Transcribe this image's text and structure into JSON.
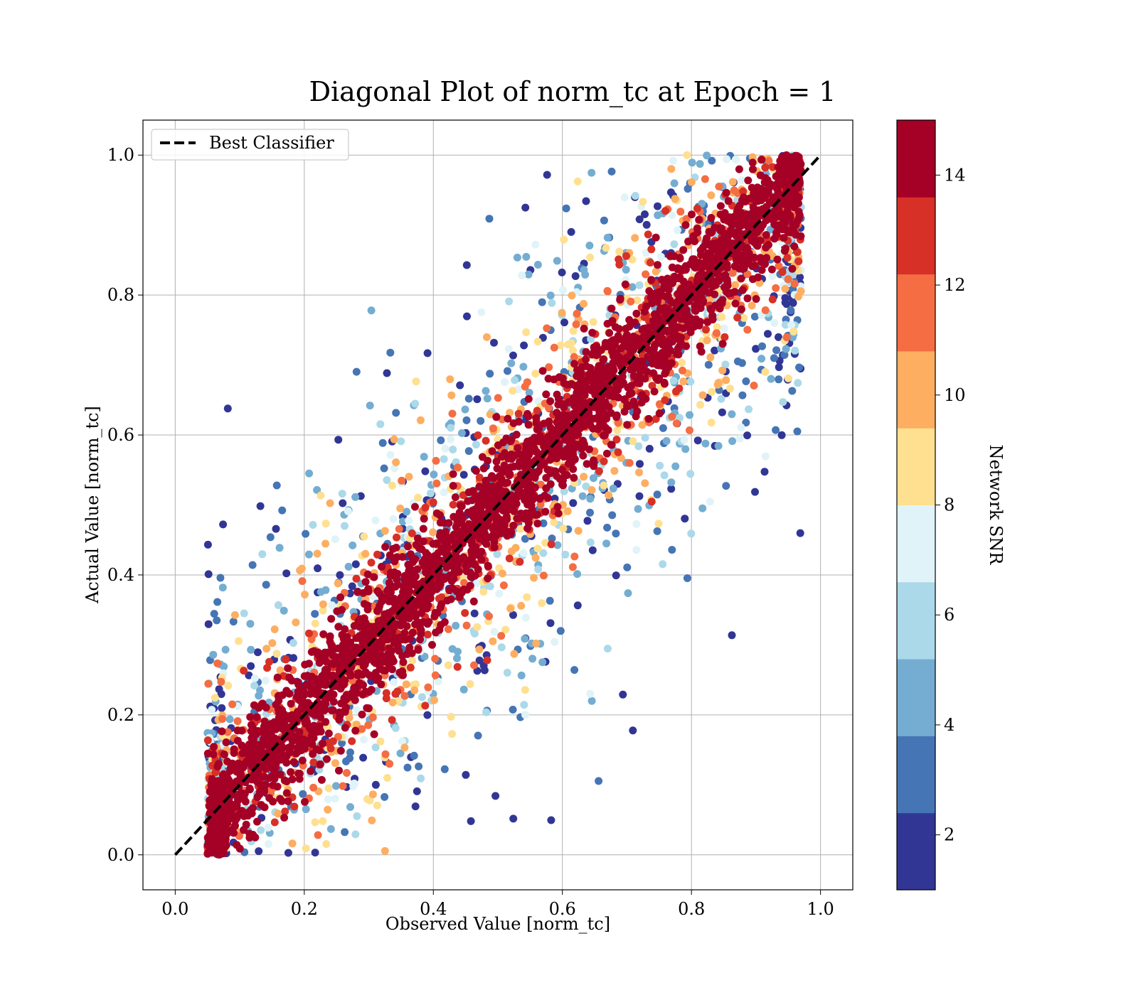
{
  "chart_data": {
    "type": "scatter",
    "title": "Diagonal Plot of norm_tc at Epoch = 1",
    "xlabel": "Observed Value [norm_tc]",
    "ylabel": "Actual Value [norm_tc]",
    "xlim": [
      -0.05,
      1.05
    ],
    "ylim": [
      -0.05,
      1.05
    ],
    "xticks": [
      "0.0",
      "0.2",
      "0.4",
      "0.6",
      "0.8",
      "1.0"
    ],
    "yticks": [
      "0.0",
      "0.2",
      "0.4",
      "0.6",
      "0.8",
      "1.0"
    ],
    "grid": true,
    "legend": {
      "placement": "upper-left",
      "entries": [
        "Best Classifier"
      ]
    },
    "reference_line": {
      "name": "Best Classifier",
      "style": "dashed",
      "color": "#000000",
      "x": [
        0,
        1
      ],
      "y": [
        0,
        1
      ]
    },
    "colorbar": {
      "label": "Network SNR",
      "range": [
        1,
        15
      ],
      "ticks": [
        "2",
        "4",
        "6",
        "8",
        "10",
        "12",
        "14"
      ],
      "colormap": "RdYlBu_r",
      "bins": 10,
      "colors": [
        "#313695",
        "#4575b4",
        "#74add1",
        "#abd9e9",
        "#e0f3f8",
        "#fee090",
        "#fdae61",
        "#f46d43",
        "#d73027",
        "#a50026"
      ]
    },
    "points_description_values": {
      "observed_range": [
        0.05,
        0.97
      ],
      "actual_range": [
        0.0,
        1.0
      ],
      "high_snr_band_halfwidth": 0.1,
      "low_snr_spread_max": 0.45
    }
  }
}
